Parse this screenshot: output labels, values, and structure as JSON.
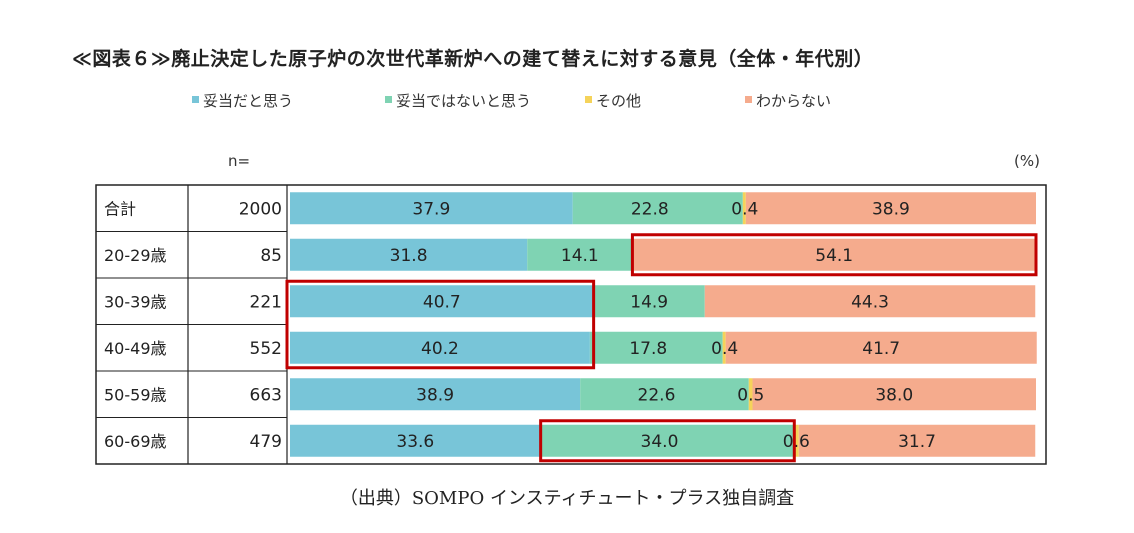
{
  "title": "≪図表６≫廃止決定した原子炉の次世代革新炉への建て替えに対する意見（全体・年代別）",
  "source": "（出典）SOMPO インスティチュート・プラス独自調査",
  "n_header": "n=",
  "unit": "(%)",
  "colors": {
    "agree": "#78c5d8",
    "disagree": "#7fd3b3",
    "other": "#f5d35a",
    "unknown": "#f5ab8d",
    "highlight": "#c00000"
  },
  "chart_data": {
    "type": "bar",
    "stacked": true,
    "orientation": "horizontal",
    "xlim": [
      0,
      100
    ],
    "categories": [
      "合計",
      "20-29歳",
      "30-39歳",
      "40-49歳",
      "50-59歳",
      "60-69歳"
    ],
    "n": [
      "2000",
      "85",
      "221",
      "552",
      "663",
      "479"
    ],
    "series": [
      {
        "name": "妥当だと思う",
        "values": [
          37.9,
          31.8,
          40.7,
          40.2,
          38.9,
          33.6
        ]
      },
      {
        "name": "妥当ではないと思う",
        "values": [
          22.8,
          14.1,
          14.9,
          17.8,
          22.6,
          34.0
        ]
      },
      {
        "name": "その他",
        "values": [
          0.4,
          0.0,
          0.0,
          0.4,
          0.5,
          0.6
        ]
      },
      {
        "name": "わからない",
        "values": [
          38.9,
          54.1,
          44.3,
          41.7,
          38.0,
          31.7
        ]
      }
    ],
    "value_labels": [
      [
        "37.9",
        "22.8",
        "0.4",
        "38.9"
      ],
      [
        "31.8",
        "14.1",
        "",
        "54.1"
      ],
      [
        "40.7",
        "14.9",
        "",
        "44.3"
      ],
      [
        "40.2",
        "17.8",
        "0.4",
        "41.7"
      ],
      [
        "38.9",
        "22.6",
        "0.5",
        "38.0"
      ],
      [
        "33.6",
        "34.0",
        "0.6",
        "31.7"
      ]
    ],
    "highlights": [
      {
        "series": 3,
        "rows": [
          1,
          1
        ]
      },
      {
        "series": 0,
        "rows": [
          2,
          3
        ]
      },
      {
        "series": 1,
        "rows": [
          5,
          5
        ]
      }
    ],
    "legend_position": "top"
  }
}
